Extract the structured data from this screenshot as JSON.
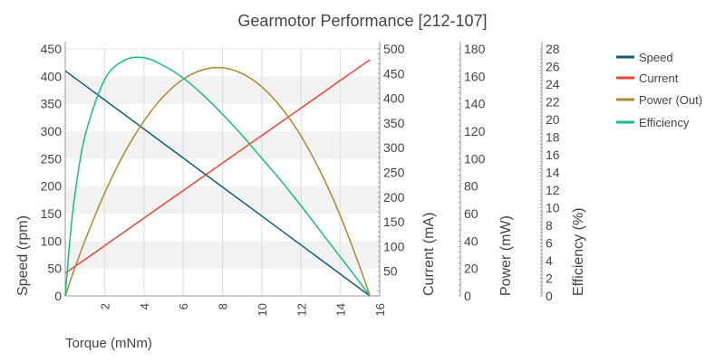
{
  "chart_data": {
    "type": "line",
    "title": "Gearmotor Performance [212-107]",
    "xlabel": "Torque (mNm)",
    "xlim": [
      0,
      16
    ],
    "x_ticks": [
      2,
      4,
      6,
      8,
      10,
      12,
      14,
      16
    ],
    "x": [
      0,
      0.25,
      0.5,
      1,
      2,
      3,
      4,
      5,
      6,
      7,
      8,
      9,
      10,
      11,
      12,
      13,
      14,
      15,
      15.5
    ],
    "axes": [
      {
        "id": "speed",
        "label": "Speed (rpm)",
        "range": [
          0,
          450
        ],
        "ticks": [
          0,
          50,
          100,
          150,
          200,
          250,
          300,
          350,
          400,
          450
        ],
        "side": "left"
      },
      {
        "id": "current",
        "label": "Current (mA)",
        "range": [
          0,
          500
        ],
        "ticks": [
          50,
          100,
          150,
          200,
          250,
          300,
          350,
          400,
          450,
          500
        ],
        "side": "right"
      },
      {
        "id": "power",
        "label": "Power (mW)",
        "range": [
          0,
          180
        ],
        "ticks": [
          0,
          20,
          40,
          60,
          80,
          100,
          120,
          140,
          160,
          180
        ],
        "side": "right"
      },
      {
        "id": "efficiency",
        "label": "Efficiency (%)",
        "range": [
          0,
          28
        ],
        "ticks": [
          0,
          2,
          4,
          6,
          8,
          10,
          12,
          14,
          16,
          18,
          20,
          22,
          24,
          26,
          28
        ],
        "side": "right"
      }
    ],
    "series": [
      {
        "name": "Speed",
        "axis": "speed",
        "color": "#0f5e7e",
        "values": [
          410,
          403.4,
          396.8,
          383.5,
          357.1,
          330.6,
          304.2,
          277.7,
          251.3,
          224.8,
          198.4,
          171.9,
          145.5,
          119.0,
          92.6,
          66.1,
          39.7,
          13.2,
          0
        ]
      },
      {
        "name": "Current",
        "axis": "current",
        "color": "#f44336",
        "values": [
          46,
          53.0,
          59.9,
          73.9,
          101.7,
          129.6,
          157.5,
          185.4,
          213.2,
          241.1,
          269.0,
          296.8,
          324.7,
          352.6,
          380.4,
          408.3,
          436.2,
          464.1,
          478
        ]
      },
      {
        "name": "Power (Out)",
        "axis": "power",
        "color": "#b0862e",
        "values": [
          0,
          10.6,
          20.8,
          40.2,
          74.8,
          103.9,
          127.4,
          145.4,
          157.9,
          164.8,
          166.2,
          162.0,
          152.4,
          137.1,
          116.4,
          90.0,
          58.2,
          20.7,
          0
        ]
      },
      {
        "name": "Efficiency",
        "axis": "efficiency",
        "color": "#13bf83",
        "values": [
          0,
          6.6,
          11.6,
          18.1,
          24.5,
          26.7,
          27.0,
          26.1,
          24.7,
          22.8,
          20.6,
          18.2,
          15.6,
          13.0,
          10.2,
          7.3,
          4.4,
          1.5,
          0
        ]
      }
    ],
    "grid": true,
    "legend": "top-right"
  }
}
